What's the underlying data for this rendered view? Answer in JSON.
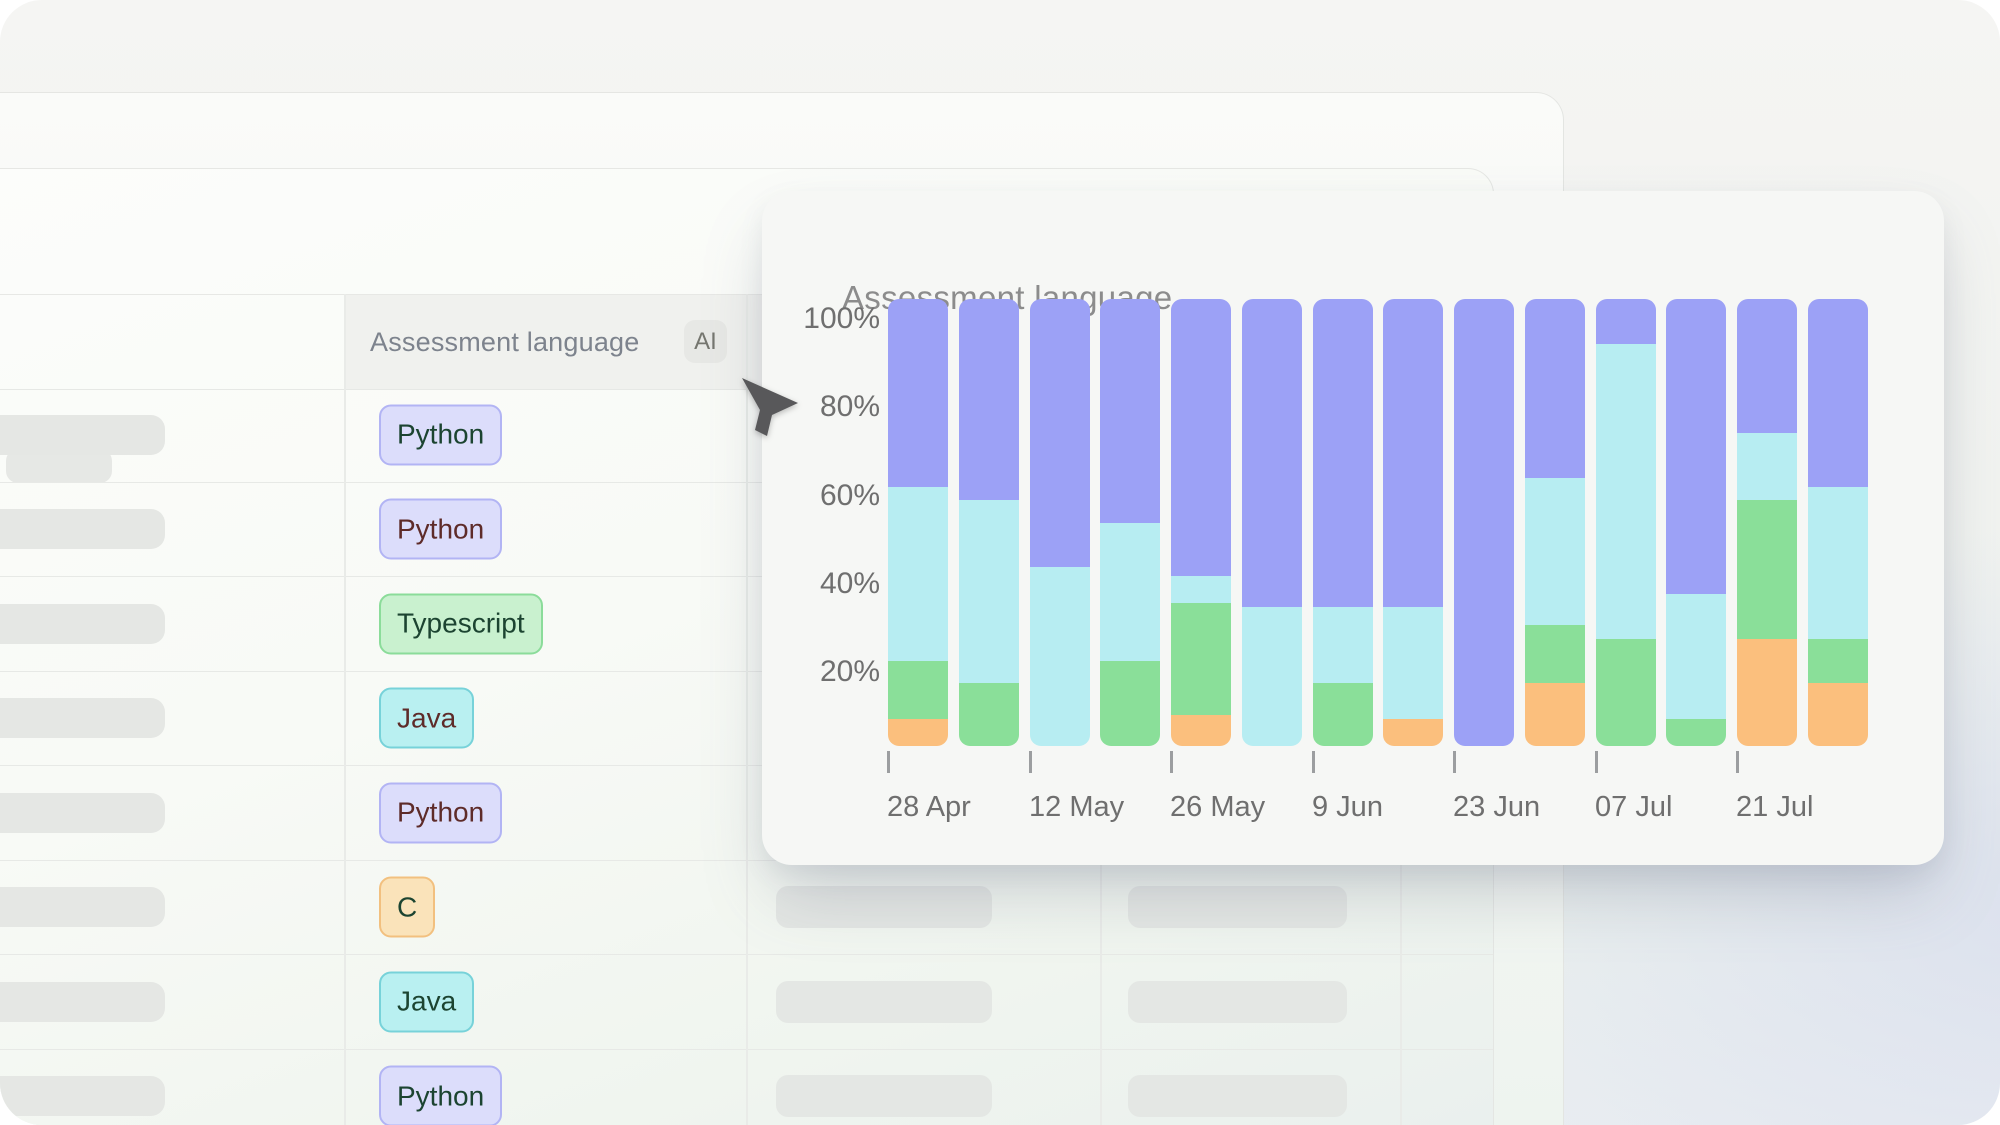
{
  "table": {
    "header": {
      "language_column_label": "Assessment language",
      "ai_badge_label": "AI"
    },
    "rows": [
      {
        "language": "Python",
        "variant": "purple",
        "text": "dark-green",
        "right_skeletons": false
      },
      {
        "language": "Python",
        "variant": "purple",
        "text": "maroon",
        "right_skeletons": false
      },
      {
        "language": "Typescript",
        "variant": "green",
        "text": "dark-green",
        "right_skeletons": false
      },
      {
        "language": "Java",
        "variant": "cyan",
        "text": "maroon",
        "right_skeletons": false
      },
      {
        "language": "Python",
        "variant": "purple",
        "text": "maroon",
        "right_skeletons": false
      },
      {
        "language": "C",
        "variant": "orange",
        "text": "dark-green",
        "right_skeletons": true
      },
      {
        "language": "Java",
        "variant": "cyan",
        "text": "dark-green",
        "right_skeletons": true
      },
      {
        "language": "Python",
        "variant": "purple",
        "text": "dark-green",
        "right_skeletons": true
      }
    ],
    "badge_variants": {
      "purple": {
        "bg": "#dcddfb",
        "border": "#b2b4f4"
      },
      "green": {
        "bg": "#c9f1cf",
        "border": "#8bdc9a"
      },
      "cyan": {
        "bg": "#b9f0f1",
        "border": "#77d2d9"
      },
      "orange": {
        "bg": "#fae3ba",
        "border": "#f2c07f"
      }
    },
    "badge_text_colors": {
      "dark-green": "#1c4431",
      "maroon": "#5e2b29"
    }
  },
  "chart_data": {
    "type": "bar",
    "subtype": "stacked-100-percent",
    "title": "Assessment language",
    "y_tick_labels": [
      "100%",
      "80%",
      "60%",
      "40%",
      "20%"
    ],
    "ylim": [
      0,
      100
    ],
    "grid": false,
    "legend": "none",
    "x_tick_labels": [
      "28 Apr",
      "12 May",
      "26 May",
      "9 Jun",
      "23 Jun",
      "07 Jul",
      "21 Jul"
    ],
    "x_tick_every_n_bars": 2,
    "bar_count": 14,
    "series": [
      {
        "name": "orange",
        "color": "#fbbf7d",
        "values": [
          6,
          0,
          0,
          0,
          7,
          0,
          0,
          6,
          0,
          14,
          0,
          0,
          24,
          14
        ]
      },
      {
        "name": "green",
        "color": "#8adf99",
        "values": [
          13,
          14,
          0,
          19,
          25,
          0,
          14,
          0,
          0,
          13,
          24,
          6,
          31,
          10
        ]
      },
      {
        "name": "cyan",
        "color": "#b7edf2",
        "values": [
          39,
          41,
          40,
          31,
          6,
          31,
          17,
          25,
          0,
          33,
          66,
          28,
          15,
          34
        ]
      },
      {
        "name": "purple",
        "color": "#9ca1f6",
        "values": [
          42,
          45,
          60,
          50,
          62,
          69,
          69,
          69,
          100,
          40,
          10,
          66,
          30,
          42
        ]
      }
    ]
  },
  "colors": {
    "skeleton": "#e5e7e4",
    "header_cell_bg": "#f0f1ee",
    "header_text": "#7d838d",
    "chart_title_text": "#8c8c8c",
    "axis_text": "#6f6f6f",
    "cursor": "#58585a"
  }
}
